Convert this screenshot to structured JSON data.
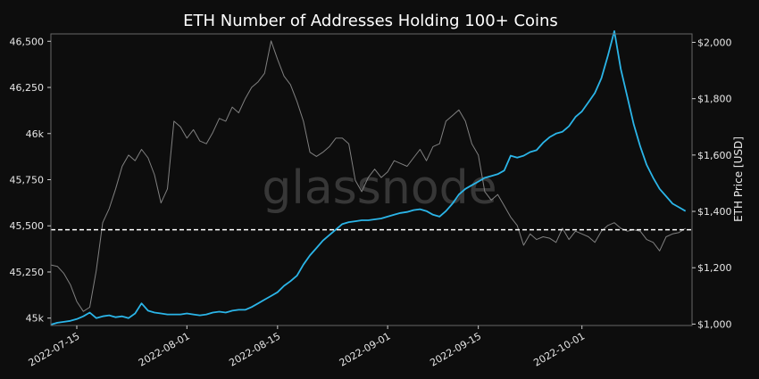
{
  "chart_data": {
    "type": "line",
    "title": "ETH Number of Addresses Holding 100+ Coins",
    "watermark": "glassnode",
    "x_ticks": [
      "2022-07-15",
      "2022-08-01",
      "2022-08-15",
      "2022-09-01",
      "2022-09-15",
      "2022-10-01"
    ],
    "xlim": [
      "2022-07-11",
      "2022-10-18"
    ],
    "left_axis": {
      "ticks": [
        "45k",
        "45,250",
        "45,500",
        "45,750",
        "46k",
        "46,250",
        "46,500"
      ],
      "tick_values": [
        45000,
        45250,
        45500,
        45750,
        46000,
        46250,
        46500
      ],
      "ylim": [
        44960,
        46540
      ]
    },
    "right_axis": {
      "label": "ETH Price [USD]",
      "ticks": [
        "$1,000",
        "$1,200",
        "$1,400",
        "$1,600",
        "$1,800",
        "$2,000"
      ],
      "tick_values": [
        1000,
        1200,
        1400,
        1600,
        1800,
        2000
      ],
      "ylim": [
        995,
        2030
      ]
    },
    "reference_line": {
      "axis": "right",
      "value": 1335,
      "style": "dashed",
      "color": "#ffffff"
    },
    "series": [
      {
        "axis": "right",
        "color": "#808080",
        "points": [
          [
            "2022-07-11",
            1210
          ],
          [
            "2022-07-12",
            1205
          ],
          [
            "2022-07-13",
            1180
          ],
          [
            "2022-07-14",
            1140
          ],
          [
            "2022-07-15",
            1080
          ],
          [
            "2022-07-16",
            1045
          ],
          [
            "2022-07-17",
            1060
          ],
          [
            "2022-07-18",
            1190
          ],
          [
            "2022-07-19",
            1360
          ],
          [
            "2022-07-20",
            1410
          ],
          [
            "2022-07-21",
            1480
          ],
          [
            "2022-07-22",
            1560
          ],
          [
            "2022-07-23",
            1600
          ],
          [
            "2022-07-24",
            1580
          ],
          [
            "2022-07-25",
            1620
          ],
          [
            "2022-07-26",
            1590
          ],
          [
            "2022-07-27",
            1530
          ],
          [
            "2022-07-28",
            1430
          ],
          [
            "2022-07-29",
            1480
          ],
          [
            "2022-07-30",
            1720
          ],
          [
            "2022-07-31",
            1700
          ],
          [
            "2022-08-01",
            1660
          ],
          [
            "2022-08-02",
            1690
          ],
          [
            "2022-08-03",
            1650
          ],
          [
            "2022-08-04",
            1640
          ],
          [
            "2022-08-05",
            1680
          ],
          [
            "2022-08-06",
            1730
          ],
          [
            "2022-08-07",
            1720
          ],
          [
            "2022-08-08",
            1770
          ],
          [
            "2022-08-09",
            1750
          ],
          [
            "2022-08-10",
            1800
          ],
          [
            "2022-08-11",
            1840
          ],
          [
            "2022-08-12",
            1860
          ],
          [
            "2022-08-13",
            1890
          ],
          [
            "2022-08-14",
            2005
          ],
          [
            "2022-08-15",
            1940
          ],
          [
            "2022-08-16",
            1880
          ],
          [
            "2022-08-17",
            1850
          ],
          [
            "2022-08-18",
            1790
          ],
          [
            "2022-08-19",
            1720
          ],
          [
            "2022-08-20",
            1610
          ],
          [
            "2022-08-21",
            1595
          ],
          [
            "2022-08-22",
            1610
          ],
          [
            "2022-08-23",
            1630
          ],
          [
            "2022-08-24",
            1660
          ],
          [
            "2022-08-25",
            1660
          ],
          [
            "2022-08-26",
            1640
          ],
          [
            "2022-08-27",
            1510
          ],
          [
            "2022-08-28",
            1470
          ],
          [
            "2022-08-29",
            1520
          ],
          [
            "2022-08-30",
            1550
          ],
          [
            "2022-08-31",
            1520
          ],
          [
            "2022-09-01",
            1540
          ],
          [
            "2022-09-02",
            1580
          ],
          [
            "2022-09-03",
            1570
          ],
          [
            "2022-09-04",
            1560
          ],
          [
            "2022-09-05",
            1590
          ],
          [
            "2022-09-06",
            1620
          ],
          [
            "2022-09-07",
            1580
          ],
          [
            "2022-09-08",
            1630
          ],
          [
            "2022-09-09",
            1640
          ],
          [
            "2022-09-10",
            1720
          ],
          [
            "2022-09-11",
            1740
          ],
          [
            "2022-09-12",
            1760
          ],
          [
            "2022-09-13",
            1720
          ],
          [
            "2022-09-14",
            1640
          ],
          [
            "2022-09-15",
            1600
          ],
          [
            "2022-09-16",
            1470
          ],
          [
            "2022-09-17",
            1440
          ],
          [
            "2022-09-18",
            1460
          ],
          [
            "2022-09-19",
            1420
          ],
          [
            "2022-09-20",
            1380
          ],
          [
            "2022-09-21",
            1350
          ],
          [
            "2022-09-22",
            1280
          ],
          [
            "2022-09-23",
            1320
          ],
          [
            "2022-09-24",
            1300
          ],
          [
            "2022-09-25",
            1310
          ],
          [
            "2022-09-26",
            1305
          ],
          [
            "2022-09-27",
            1290
          ],
          [
            "2022-09-28",
            1340
          ],
          [
            "2022-09-29",
            1300
          ],
          [
            "2022-09-30",
            1330
          ],
          [
            "2022-10-01",
            1320
          ],
          [
            "2022-10-02",
            1310
          ],
          [
            "2022-10-03",
            1290
          ],
          [
            "2022-10-04",
            1330
          ],
          [
            "2022-10-05",
            1350
          ],
          [
            "2022-10-06",
            1360
          ],
          [
            "2022-10-07",
            1340
          ],
          [
            "2022-10-08",
            1330
          ],
          [
            "2022-10-09",
            1335
          ],
          [
            "2022-10-10",
            1330
          ],
          [
            "2022-10-11",
            1300
          ],
          [
            "2022-10-12",
            1290
          ],
          [
            "2022-10-13",
            1260
          ],
          [
            "2022-10-14",
            1310
          ],
          [
            "2022-10-15",
            1320
          ],
          [
            "2022-10-16",
            1325
          ],
          [
            "2022-10-17",
            1340
          ]
        ]
      },
      {
        "axis": "left",
        "color": "#2bb5e8",
        "points": [
          [
            "2022-07-11",
            44965
          ],
          [
            "2022-07-12",
            44975
          ],
          [
            "2022-07-13",
            44980
          ],
          [
            "2022-07-14",
            44985
          ],
          [
            "2022-07-15",
            44995
          ],
          [
            "2022-07-16",
            45010
          ],
          [
            "2022-07-17",
            45030
          ],
          [
            "2022-07-18",
            45000
          ],
          [
            "2022-07-19",
            45010
          ],
          [
            "2022-07-20",
            45015
          ],
          [
            "2022-07-21",
            45005
          ],
          [
            "2022-07-22",
            45010
          ],
          [
            "2022-07-23",
            45000
          ],
          [
            "2022-07-24",
            45025
          ],
          [
            "2022-07-25",
            45080
          ],
          [
            "2022-07-26",
            45040
          ],
          [
            "2022-07-27",
            45030
          ],
          [
            "2022-07-28",
            45025
          ],
          [
            "2022-07-29",
            45020
          ],
          [
            "2022-07-30",
            45020
          ],
          [
            "2022-07-31",
            45020
          ],
          [
            "2022-08-01",
            45025
          ],
          [
            "2022-08-02",
            45020
          ],
          [
            "2022-08-03",
            45015
          ],
          [
            "2022-08-04",
            45020
          ],
          [
            "2022-08-05",
            45030
          ],
          [
            "2022-08-06",
            45035
          ],
          [
            "2022-08-07",
            45030
          ],
          [
            "2022-08-08",
            45040
          ],
          [
            "2022-08-09",
            45045
          ],
          [
            "2022-08-10",
            45045
          ],
          [
            "2022-08-11",
            45060
          ],
          [
            "2022-08-12",
            45080
          ],
          [
            "2022-08-13",
            45100
          ],
          [
            "2022-08-14",
            45120
          ],
          [
            "2022-08-15",
            45140
          ],
          [
            "2022-08-16",
            45175
          ],
          [
            "2022-08-17",
            45200
          ],
          [
            "2022-08-18",
            45230
          ],
          [
            "2022-08-19",
            45290
          ],
          [
            "2022-08-20",
            45340
          ],
          [
            "2022-08-21",
            45380
          ],
          [
            "2022-08-22",
            45420
          ],
          [
            "2022-08-23",
            45450
          ],
          [
            "2022-08-24",
            45480
          ],
          [
            "2022-08-25",
            45510
          ],
          [
            "2022-08-26",
            45520
          ],
          [
            "2022-08-27",
            45525
          ],
          [
            "2022-08-28",
            45530
          ],
          [
            "2022-08-29",
            45530
          ],
          [
            "2022-08-30",
            45535
          ],
          [
            "2022-08-31",
            45540
          ],
          [
            "2022-09-01",
            45550
          ],
          [
            "2022-09-02",
            45560
          ],
          [
            "2022-09-03",
            45570
          ],
          [
            "2022-09-04",
            45575
          ],
          [
            "2022-09-05",
            45585
          ],
          [
            "2022-09-06",
            45590
          ],
          [
            "2022-09-07",
            45580
          ],
          [
            "2022-09-08",
            45560
          ],
          [
            "2022-09-09",
            45550
          ],
          [
            "2022-09-10",
            45580
          ],
          [
            "2022-09-11",
            45620
          ],
          [
            "2022-09-12",
            45670
          ],
          [
            "2022-09-13",
            45700
          ],
          [
            "2022-09-14",
            45720
          ],
          [
            "2022-09-15",
            45740
          ],
          [
            "2022-09-16",
            45760
          ],
          [
            "2022-09-17",
            45770
          ],
          [
            "2022-09-18",
            45780
          ],
          [
            "2022-09-19",
            45800
          ],
          [
            "2022-09-20",
            45880
          ],
          [
            "2022-09-21",
            45870
          ],
          [
            "2022-09-22",
            45880
          ],
          [
            "2022-09-23",
            45900
          ],
          [
            "2022-09-24",
            45910
          ],
          [
            "2022-09-25",
            45950
          ],
          [
            "2022-09-26",
            45980
          ],
          [
            "2022-09-27",
            46000
          ],
          [
            "2022-09-28",
            46010
          ],
          [
            "2022-09-29",
            46040
          ],
          [
            "2022-09-30",
            46090
          ],
          [
            "2022-10-01",
            46120
          ],
          [
            "2022-10-02",
            46170
          ],
          [
            "2022-10-03",
            46220
          ],
          [
            "2022-10-04",
            46300
          ],
          [
            "2022-10-05",
            46420
          ],
          [
            "2022-10-06",
            46555
          ],
          [
            "2022-10-07",
            46350
          ],
          [
            "2022-10-08",
            46200
          ],
          [
            "2022-10-09",
            46050
          ],
          [
            "2022-10-10",
            45930
          ],
          [
            "2022-10-11",
            45830
          ],
          [
            "2022-10-12",
            45760
          ],
          [
            "2022-10-13",
            45700
          ],
          [
            "2022-10-14",
            45660
          ],
          [
            "2022-10-15",
            45620
          ],
          [
            "2022-10-16",
            45600
          ],
          [
            "2022-10-17",
            45580
          ]
        ]
      }
    ]
  }
}
